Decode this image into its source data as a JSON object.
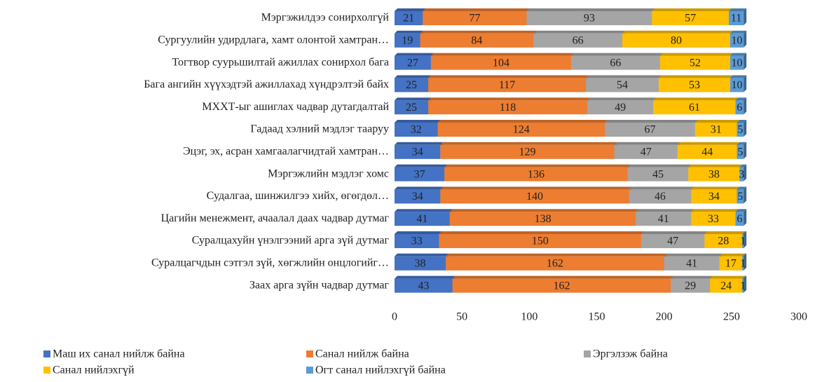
{
  "chart_data": {
    "type": "stacked-bar-horizontal",
    "categories": [
      "Мэргэжилдээ сонирхолгүй",
      "Сургуулийн удирдлага, хамт олонтой хамтран…",
      "Тогтвор суурьшилтай ажиллах сонирхол бага",
      "Бага ангийн хүүхэдтэй ажиллахад хүндрэлтэй байх",
      "МХХТ-ыг ашиглах чадвар дутагдалтай",
      "Гадаад хэлний мэдлэг тааруу",
      "Эцэг, эх, асран хамгаалагчидтай хамтран…",
      "Мэргэжлийн мэдлэг хомс",
      "Судалгаа, шинжилгээ хийх, өгөгдөл…",
      "Цагийн менежмент, ачаалал даах чадвар дутмаг",
      "Суралцахуйн үнэлгээний арга зүй дутмаг",
      "Суралцагчдын сэтгэл зүй, хөгжлийн онцлогийг…",
      "Заах арга зүйн чадвар дутмаг"
    ],
    "series": [
      {
        "name": "Маш  их санал нийлж байна",
        "color": "#4472c4",
        "values": [
          21,
          19,
          27,
          25,
          25,
          32,
          34,
          37,
          34,
          41,
          33,
          38,
          43
        ]
      },
      {
        "name": "Санал нийлж байна",
        "color": "#ed7d31",
        "values": [
          77,
          84,
          104,
          117,
          118,
          124,
          129,
          136,
          140,
          138,
          150,
          162,
          162
        ]
      },
      {
        "name": "Эргэлзэж байна",
        "color": "#a5a5a5",
        "values": [
          93,
          66,
          66,
          54,
          49,
          67,
          47,
          45,
          46,
          41,
          47,
          41,
          29
        ]
      },
      {
        "name": "Санал нийлэхгүй",
        "color": "#ffc000",
        "values": [
          57,
          80,
          52,
          53,
          61,
          31,
          44,
          38,
          34,
          33,
          28,
          17,
          24
        ]
      },
      {
        "name": "Огт санал нийлэхгүй байна",
        "color": "#5b9bd5",
        "values": [
          11,
          10,
          10,
          10,
          6,
          5,
          5,
          3,
          5,
          6,
          1,
          1,
          1
        ]
      }
    ],
    "xlim": [
      0,
      300
    ],
    "xticks": [
      0,
      50,
      100,
      150,
      200,
      250,
      300
    ]
  }
}
